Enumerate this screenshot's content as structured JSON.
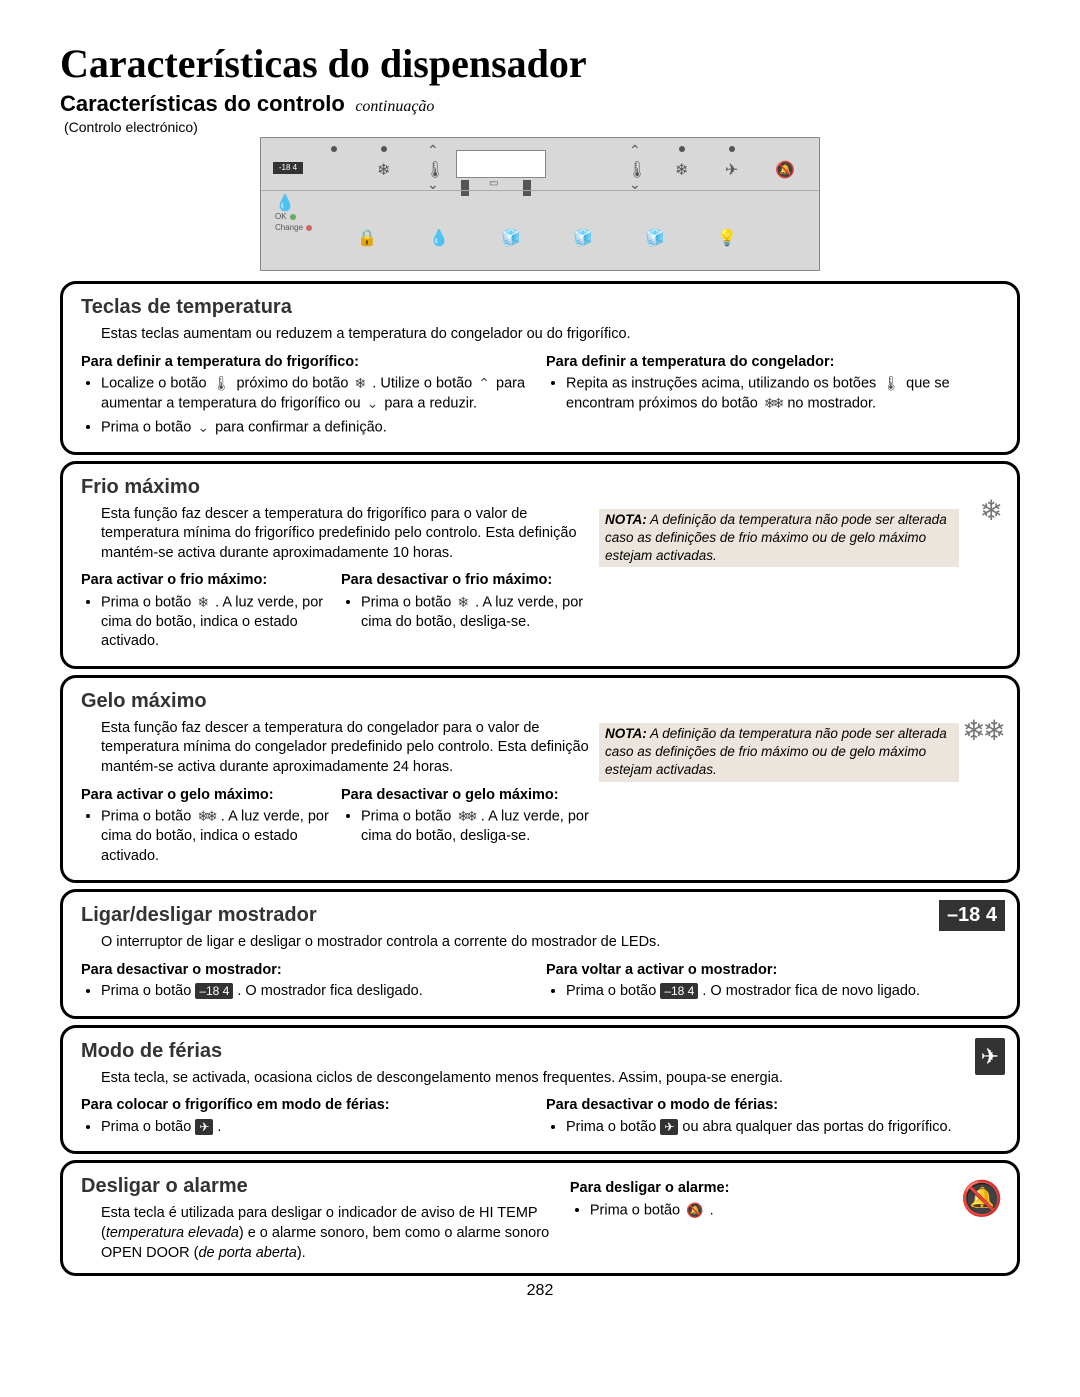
{
  "page": {
    "title": "Características do dispensador",
    "subtitle": "Características do controlo",
    "subtitle_cont": "continuação",
    "panel_caption": "(Controlo electrónico)",
    "number": "282"
  },
  "panel": {
    "mini_display": "-18 4",
    "status_labels": [
      "OK",
      "Change"
    ],
    "filter_icon": "💧",
    "row1_icons": [
      "❄",
      "❄"
    ],
    "row2_icons": [
      "🔒",
      "💧",
      "🧊",
      "🧊",
      "🧊",
      "💡"
    ],
    "vacation_icon": "✈",
    "alarm_icon": "🔕"
  },
  "sections": {
    "temp": {
      "title": "Teclas de temperatura",
      "intro": "Estas teclas aumentam ou reduzem a temperatura do congelador ou do frigorífico.",
      "left_sub": "Para definir a temperatura do frigorífico:",
      "left_items": [
        "Localize o botão {temp} próximo do botão {snow} . Utilize o botão {chevup} para aumentar a temperatura do frigorífico ou {chevdn} para a reduzir.",
        "Prima o botão {chevdn} para confirmar a definição."
      ],
      "right_sub": "Para definir a temperatura do congelador:",
      "right_items": [
        "Repita as instruções acima, utilizando os botões {temp} que se encontram próximos do botão {snow2} no mostrador."
      ]
    },
    "frio": {
      "title": "Frio máximo",
      "intro": "Esta função faz descer a temperatura do frigorífico para o valor de temperatura mínima do frigorífico predefinido pelo controlo. Esta definição mantém-se activa durante aproximadamente 10 horas.",
      "note_b": "NOTA:",
      "note": " A definição da temperatura não pode ser alterada caso as definições de frio máximo ou de gelo máximo estejam activadas.",
      "left_sub": "Para activar o frio máximo:",
      "left_items": [
        "Prima o botão {snow} . A luz verde, por cima do botão, indica o estado activado."
      ],
      "right_sub": "Para desactivar o frio máximo:",
      "right_items": [
        "Prima o botão {snow} . A luz verde, por cima do botão, desliga-se."
      ],
      "side_icon": "snow"
    },
    "gelo": {
      "title": "Gelo máximo",
      "intro": "Esta função faz descer a temperatura do congelador para o valor de temperatura mínima do congelador predefinido pelo controlo. Esta definição mantém-se activa durante aproximadamente 24 horas.",
      "note_b": "NOTA:",
      "note": " A definição da temperatura não pode ser alterada caso as definições de frio máximo ou de gelo máximo estejam activadas.",
      "left_sub": "Para activar o gelo máximo:",
      "left_items": [
        "Prima o botão {snow2} . A luz verde, por cima do botão, indica o estado activado."
      ],
      "right_sub": "Para desactivar o gelo máximo:",
      "right_items": [
        "Prima o botão {snow2} . A luz verde, por cima do botão, desliga-se."
      ],
      "side_icon": "snow2"
    },
    "display": {
      "title": "Ligar/desligar mostrador",
      "intro": "O interruptor de ligar e desligar o mostrador controla a corrente do mostrador de LEDs.",
      "left_sub": "Para desactivar o mostrador:",
      "left_items": [
        "Prima o botão {disp} . O mostrador fica desligado."
      ],
      "right_sub": "Para voltar a activar o mostrador:",
      "right_items": [
        "Prima o botão {disp} . O mostrador fica de novo ligado."
      ],
      "disp_text": "–18 4",
      "side_display": "–18  4"
    },
    "ferias": {
      "title": "Modo de férias",
      "intro": "Esta tecla, se activada, ocasiona ciclos de descongelamento menos frequentes. Assim, poupa-se energia.",
      "left_sub": "Para colocar o frigorífico em modo de férias:",
      "left_items": [
        "Prima o botão {plane} ."
      ],
      "right_sub": "Para desactivar o modo de férias:",
      "right_items": [
        "Prima o botão {plane} ou abra qualquer das portas do frigorífico."
      ],
      "side_icon": "plane"
    },
    "alarme": {
      "title": "Desligar o alarme",
      "intro1": "Esta tecla é utilizada para desligar o indicador de aviso de HI TEMP (",
      "intro_em": "temperatura elevada",
      "intro2": ") e o alarme sonoro, bem como o alarme sonoro OPEN DOOR (",
      "intro_em2": "de porta aberta",
      "intro3": ").",
      "right_sub": "Para desligar o alarme:",
      "right_items": [
        "Prima o botão {alarm} ."
      ],
      "side_icon": "alarm"
    }
  }
}
